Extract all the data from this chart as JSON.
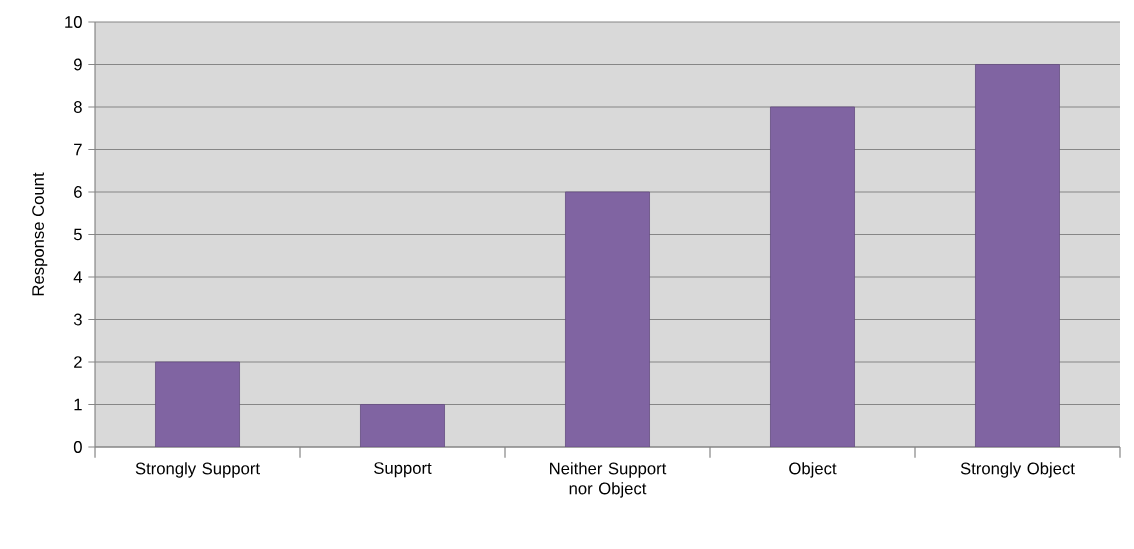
{
  "chart_data": {
    "type": "bar",
    "ylabel": "Response Count",
    "categories": [
      "Strongly Support",
      "Support",
      "Neither Support nor Object",
      "Object",
      "Strongly Object"
    ],
    "values": [
      2,
      1,
      6,
      8,
      9
    ],
    "color": "#8064a2",
    "ylim": [
      0,
      10
    ],
    "yticks": [
      0,
      1,
      2,
      3,
      4,
      5,
      6,
      7,
      8,
      9,
      10
    ],
    "grid": "y"
  }
}
